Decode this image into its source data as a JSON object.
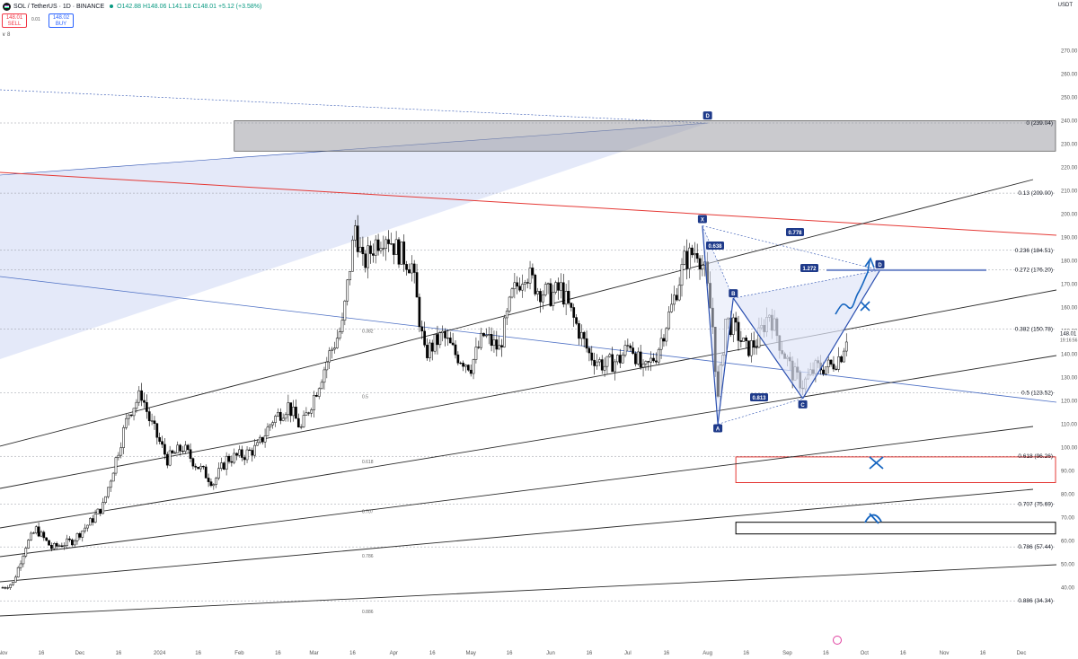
{
  "header": {
    "symbol": "SOL / TetherUS · 1D · BINANCE",
    "ohlc": "O142.88 H148.06 L141.18 C148.01 +5.12 (+3.58%)",
    "sell_price": "148.01",
    "sell_label": "SELL",
    "spread": "0.01",
    "buy_price": "148.02",
    "buy_label": "BUY",
    "indicators_toggle": "∨ 8",
    "currency": "USDT"
  },
  "colors": {
    "up": "#089981",
    "down": "#000000",
    "fib_red": "#e53935",
    "pattern_blue": "#2a4fb0",
    "pattern_fill": "#dfe5f8",
    "box_gray": "#9e9fa5",
    "box_red": "#e53935",
    "channel": "#2b2b2b"
  },
  "chart_data": {
    "type": "candlestick",
    "price_axis": {
      "ticks": [
        40,
        50,
        60,
        70,
        80,
        90,
        100,
        110,
        120,
        130,
        140,
        150,
        160,
        170,
        180,
        190,
        200,
        210,
        220,
        230,
        240,
        250,
        260,
        270
      ],
      "last_price": "148.01",
      "countdown": "19:16:56"
    },
    "x_axis": {
      "ticks": [
        {
          "label": "Nov",
          "date": "2023-11-01"
        },
        {
          "label": "16",
          "date": "2023-11-16"
        },
        {
          "label": "Dec",
          "date": "2023-12-01"
        },
        {
          "label": "16",
          "date": "2023-12-16"
        },
        {
          "label": "2024",
          "date": "2024-01-01"
        },
        {
          "label": "16",
          "date": "2024-01-16"
        },
        {
          "label": "Feb",
          "date": "2024-02-01"
        },
        {
          "label": "16",
          "date": "2024-02-16"
        },
        {
          "label": "Mar",
          "date": "2024-03-01"
        },
        {
          "label": "16",
          "date": "2024-03-16"
        },
        {
          "label": "Apr",
          "date": "2024-04-01"
        },
        {
          "label": "16",
          "date": "2024-04-16"
        },
        {
          "label": "May",
          "date": "2024-05-01"
        },
        {
          "label": "16",
          "date": "2024-05-16"
        },
        {
          "label": "Jun",
          "date": "2024-06-01"
        },
        {
          "label": "16",
          "date": "2024-06-16"
        },
        {
          "label": "Jul",
          "date": "2024-07-01"
        },
        {
          "label": "16",
          "date": "2024-07-16"
        },
        {
          "label": "Aug",
          "date": "2024-08-01"
        },
        {
          "label": "16",
          "date": "2024-08-16"
        },
        {
          "label": "Sep",
          "date": "2024-09-01"
        },
        {
          "label": "16",
          "date": "2024-09-16"
        },
        {
          "label": "Oct",
          "date": "2024-10-01"
        },
        {
          "label": "16",
          "date": "2024-10-16"
        },
        {
          "label": "Nov",
          "date": "2024-11-01"
        },
        {
          "label": "16",
          "date": "2024-11-16"
        },
        {
          "label": "Dec",
          "date": "2024-12-01"
        }
      ]
    },
    "price_path": [
      [
        "2023-11-01",
        40
      ],
      [
        "2023-11-05",
        42
      ],
      [
        "2023-11-10",
        58
      ],
      [
        "2023-11-14",
        65
      ],
      [
        "2023-11-20",
        57
      ],
      [
        "2023-11-28",
        60
      ],
      [
        "2023-12-05",
        68
      ],
      [
        "2023-12-10",
        75
      ],
      [
        "2023-12-20",
        115
      ],
      [
        "2023-12-25",
        123
      ],
      [
        "2023-12-28",
        112
      ],
      [
        "2024-01-04",
        95
      ],
      [
        "2024-01-10",
        100
      ],
      [
        "2024-01-15",
        93
      ],
      [
        "2024-01-22",
        85
      ],
      [
        "2024-01-27",
        95
      ],
      [
        "2024-02-03",
        97
      ],
      [
        "2024-02-08",
        100
      ],
      [
        "2024-02-14",
        112
      ],
      [
        "2024-02-20",
        118
      ],
      [
        "2024-02-25",
        108
      ],
      [
        "2024-03-02",
        125
      ],
      [
        "2024-03-07",
        140
      ],
      [
        "2024-03-12",
        152
      ],
      [
        "2024-03-17",
        195
      ],
      [
        "2024-03-20",
        178
      ],
      [
        "2024-03-25",
        188
      ],
      [
        "2024-03-29",
        192
      ],
      [
        "2024-04-02",
        185
      ],
      [
        "2024-04-08",
        178
      ],
      [
        "2024-04-13",
        140
      ],
      [
        "2024-04-20",
        148
      ],
      [
        "2024-04-25",
        140
      ],
      [
        "2024-05-01",
        135
      ],
      [
        "2024-05-06",
        148
      ],
      [
        "2024-05-12",
        142
      ],
      [
        "2024-05-17",
        165
      ],
      [
        "2024-05-22",
        176
      ],
      [
        "2024-05-27",
        168
      ],
      [
        "2024-06-01",
        165
      ],
      [
        "2024-06-05",
        168
      ],
      [
        "2024-06-10",
        155
      ],
      [
        "2024-06-16",
        140
      ],
      [
        "2024-06-22",
        135
      ],
      [
        "2024-06-28",
        138
      ],
      [
        "2024-07-02",
        145
      ],
      [
        "2024-07-07",
        132
      ],
      [
        "2024-07-12",
        140
      ],
      [
        "2024-07-18",
        160
      ],
      [
        "2024-07-23",
        180
      ],
      [
        "2024-07-28",
        185
      ],
      [
        "2024-07-31",
        175
      ],
      [
        "2024-08-03",
        152
      ],
      [
        "2024-08-05",
        120
      ],
      [
        "2024-08-08",
        155
      ],
      [
        "2024-08-12",
        150
      ],
      [
        "2024-08-16",
        142
      ],
      [
        "2024-08-20",
        145
      ],
      [
        "2024-08-25",
        158
      ],
      [
        "2024-08-29",
        145
      ],
      [
        "2024-09-03",
        132
      ],
      [
        "2024-09-07",
        127
      ],
      [
        "2024-09-12",
        134
      ],
      [
        "2024-09-18",
        135
      ],
      [
        "2024-09-22",
        140
      ],
      [
        "2024-09-24",
        148
      ]
    ],
    "fib_levels": [
      {
        "label": "0 (239.04)",
        "price": 239.04
      },
      {
        "label": "0.13 (209.00)",
        "price": 209.0
      },
      {
        "label": "0.236 (184.51)",
        "price": 184.51
      },
      {
        "label": "0.272 (176.20)",
        "price": 176.2
      },
      {
        "label": "0.382 (150.78)",
        "price": 150.78
      },
      {
        "label": "0.5 (123.52)",
        "price": 123.52
      },
      {
        "label": "0.618 (96.26)",
        "price": 96.26
      },
      {
        "label": "0.707 (75.69)",
        "price": 75.69
      },
      {
        "label": "0.786 (57.44)",
        "price": 57.44
      },
      {
        "label": "0.886 (34.34)",
        "price": 34.34
      }
    ],
    "fib_inner_labels": [
      "0.382",
      "0.5",
      "0.618",
      "0.707",
      "0.786",
      "0.886"
    ],
    "harmonic_pattern": {
      "points": [
        {
          "label": "X",
          "date": "2024-07-30",
          "price": 195
        },
        {
          "label": "A",
          "date": "2024-08-05",
          "price": 110
        },
        {
          "label": "B",
          "date": "2024-08-11",
          "price": 164
        },
        {
          "label": "C",
          "date": "2024-09-07",
          "price": 121
        },
        {
          "label": "D",
          "date": "2024-10-07",
          "price": 176
        }
      ],
      "ratios": [
        "0.638",
        "0.778",
        "1.272",
        "0.813"
      ]
    },
    "large_pattern_d": {
      "label": "D",
      "date": "2024-08-01",
      "price": 239
    },
    "zones": [
      {
        "name": "supply",
        "from": "2024-01-30",
        "to": "2024-12-31",
        "top": 240,
        "bottom": 227
      },
      {
        "name": "red-target",
        "from": "2024-08-12",
        "to": "2024-12-20",
        "top": 96,
        "bottom": 85
      },
      {
        "name": "black-target",
        "from": "2024-08-12",
        "to": "2024-12-20",
        "top": 68,
        "bottom": 63
      }
    ]
  }
}
